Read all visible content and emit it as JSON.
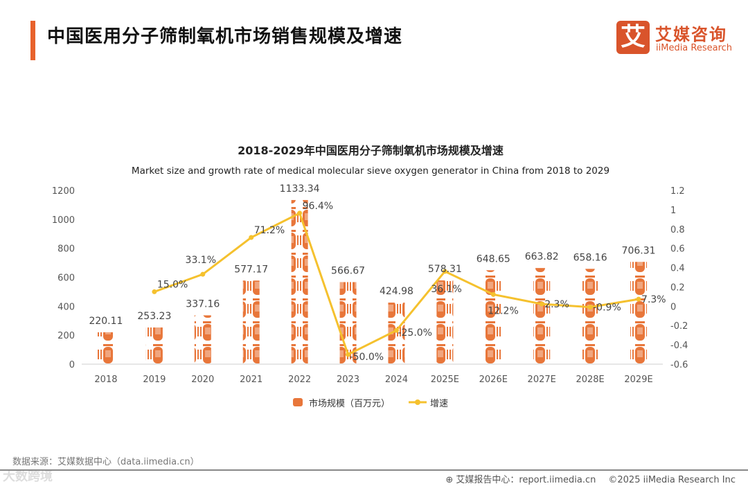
{
  "header": {
    "title": "中国医用分子筛制氧机市场销售规模及增速"
  },
  "logo": {
    "mark": "艾",
    "cn": "艾媒咨询",
    "en": "iiMedia Research"
  },
  "chart_data": {
    "type": "bar+line",
    "title": "2018-2029年中国医用分子筛制氧机市场规模及增速",
    "subtitle": "Market size and growth rate of medical molecular sieve oxygen generator in China from 2018 to 2029",
    "categories": [
      "2018",
      "2019",
      "2020",
      "2021",
      "2022",
      "2023",
      "2024",
      "2025E",
      "2026E",
      "2027E",
      "2028E",
      "2029E"
    ],
    "series": [
      {
        "name": "市场规模（百万元）",
        "type": "bar",
        "axis": "left",
        "color": "#e8763a",
        "values": [
          220.11,
          253.23,
          337.16,
          577.17,
          1133.34,
          566.67,
          424.98,
          578.31,
          648.65,
          663.82,
          658.16,
          706.31
        ],
        "labels": [
          "220.11",
          "253.23",
          "337.16",
          "577.17",
          "1133.34",
          "566.67",
          "424.98",
          "578.31",
          "648.65",
          "663.82",
          "658.16",
          "706.31"
        ]
      },
      {
        "name": "增速",
        "type": "line",
        "axis": "right",
        "color": "#f5c12e",
        "values": [
          null,
          0.15,
          0.331,
          0.712,
          0.964,
          -0.5,
          -0.25,
          0.361,
          0.122,
          0.023,
          -0.009,
          0.073
        ],
        "labels": [
          "",
          "15.0%",
          "33.1%",
          "71.2%",
          "96.4%",
          "-50.0%",
          "-25.0%",
          "36.1%",
          "12.2%",
          "2.3%",
          "-0.9%",
          "7.3%"
        ]
      }
    ],
    "left_axis": {
      "ylim": [
        0,
        1200
      ],
      "ticks": [
        "0",
        "200",
        "400",
        "600",
        "800",
        "1000",
        "1200"
      ]
    },
    "right_axis": {
      "ylim": [
        -0.6,
        1.2
      ],
      "ticks": [
        "-0.6",
        "-0.4",
        "-0.2",
        "0",
        "0.2",
        "0.4",
        "0.6",
        "0.8",
        "1",
        "1.2"
      ]
    },
    "legend_position": "bottom",
    "grid": false
  },
  "footer": {
    "source": "数据来源：艾媒数据中心（data.iimedia.cn）",
    "watermark": "大数跨境",
    "report": "艾媒报告中心：report.iimedia.cn",
    "copyright": "©2025  iiMedia Research  Inc"
  }
}
